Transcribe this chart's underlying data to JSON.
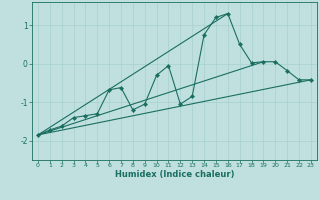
{
  "xlabel": "Humidex (Indice chaleur)",
  "bg_color": "#c0e0e0",
  "line_color": "#1a6e60",
  "grid_color": "#a8d0d0",
  "xlim": [
    -0.5,
    23.5
  ],
  "ylim": [
    -2.5,
    1.6
  ],
  "xticks": [
    0,
    1,
    2,
    3,
    4,
    5,
    6,
    7,
    8,
    9,
    10,
    11,
    12,
    13,
    14,
    15,
    16,
    17,
    18,
    19,
    20,
    21,
    22,
    23
  ],
  "yticks": [
    -2,
    -1,
    0,
    1
  ],
  "main_x": [
    0,
    1,
    2,
    3,
    4,
    5,
    6,
    7,
    8,
    9,
    10,
    11,
    12,
    13,
    14,
    15,
    16,
    17,
    18,
    19,
    20,
    21,
    22,
    23
  ],
  "main_y": [
    -1.85,
    -1.72,
    -1.62,
    -1.4,
    -1.35,
    -1.3,
    -0.68,
    -0.62,
    -1.2,
    -1.05,
    -0.3,
    -0.05,
    -1.05,
    -0.85,
    0.75,
    1.2,
    1.3,
    0.5,
    0.02,
    0.05,
    0.05,
    -0.18,
    -0.42,
    -0.42
  ],
  "line1_x": [
    0,
    23
  ],
  "line1_y": [
    -1.85,
    -0.42
  ],
  "line2_x": [
    0,
    16
  ],
  "line2_y": [
    -1.85,
    1.3
  ],
  "line3_x": [
    0,
    19
  ],
  "line3_y": [
    -1.85,
    0.05
  ],
  "marker_size": 2.2,
  "line_width": 0.8
}
